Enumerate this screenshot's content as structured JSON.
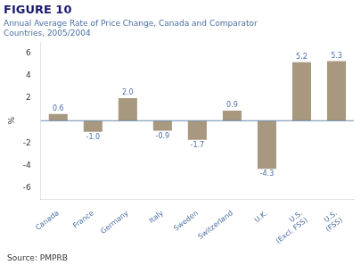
{
  "chart_data": {
    "type": "bar",
    "title": "FIGURE 10",
    "subtitle": "Annual Average Rate of Price Change, Canada and Comparator\nCountries, 2005/2004",
    "ylabel": "%",
    "annotations": [
      "Source: PMPRB"
    ],
    "categories": [
      "Canada",
      "France",
      "Germany",
      "Italy",
      "Sweden",
      "Switzerland",
      "U.K.",
      "U.S.\n(Excl. FSS)",
      "U.S.\n(FSS)"
    ],
    "values": [
      0.6,
      -1.0,
      2.0,
      -0.9,
      -1.7,
      0.9,
      -4.3,
      5.2,
      5.3
    ],
    "value_labels": [
      "0.6",
      "-1.0",
      "2.0",
      "-0.9",
      "-1.7",
      "0.9",
      "-4.3",
      "5.2",
      "5.3"
    ],
    "data_labels": true,
    "color": "#a89880",
    "ylim": [
      -7,
      7
    ],
    "yticks": [
      -6,
      -4,
      -2,
      2,
      4,
      6
    ],
    "grid": false
  }
}
